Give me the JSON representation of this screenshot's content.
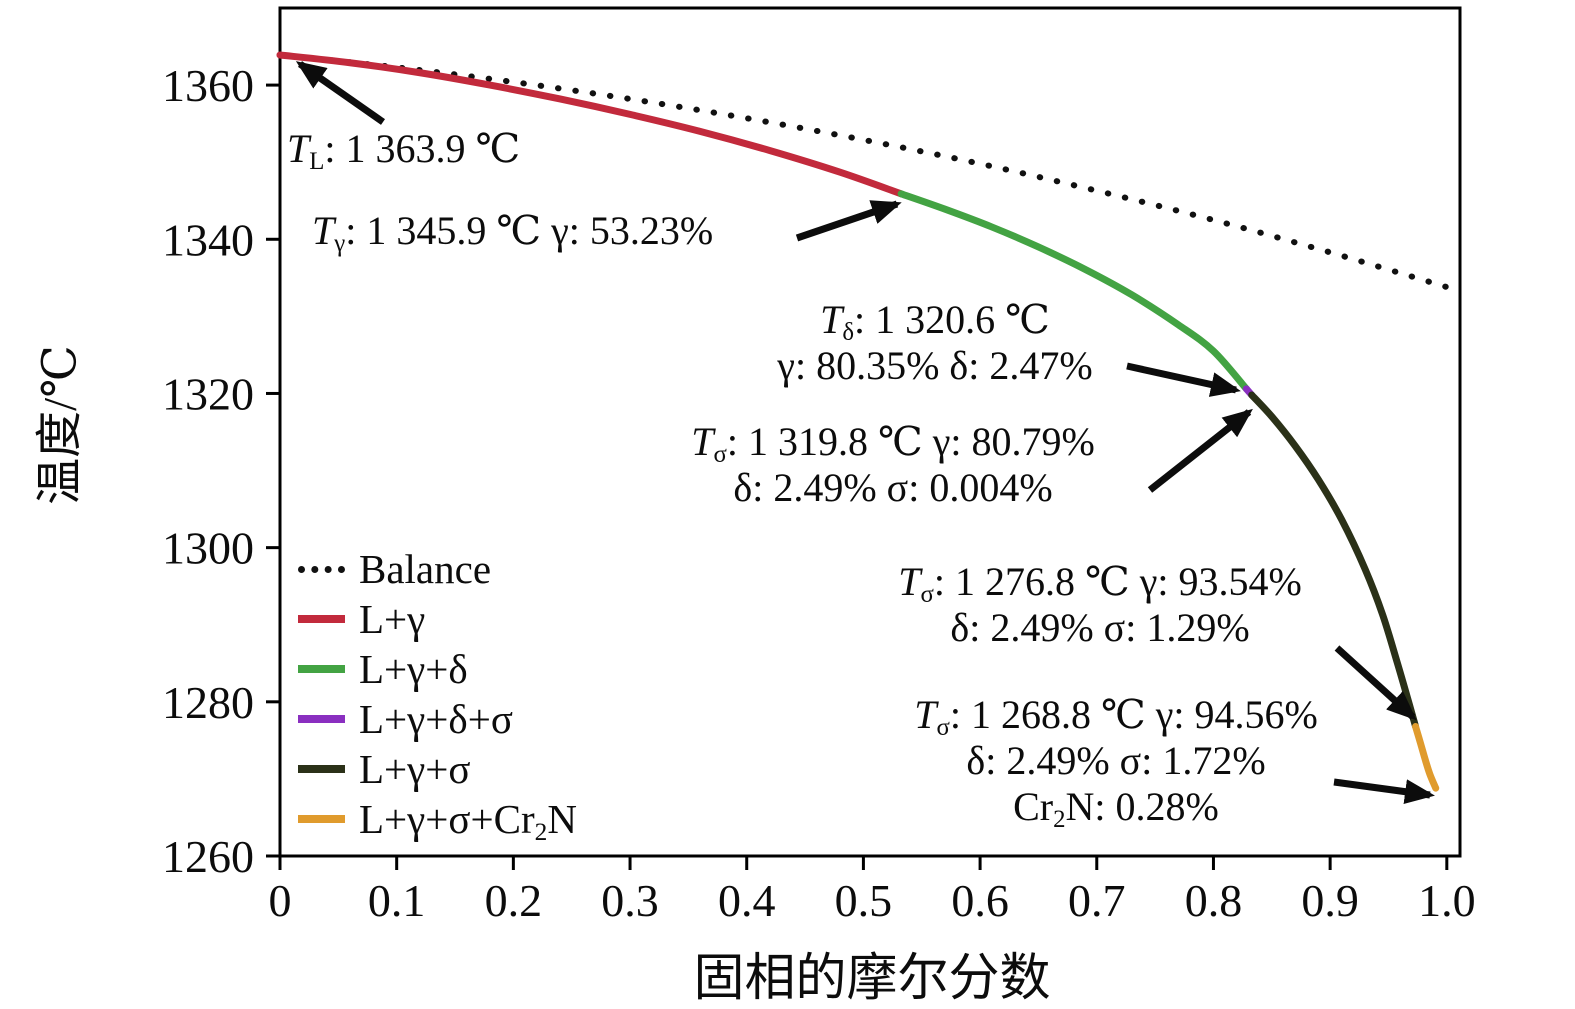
{
  "chart_data": {
    "type": "line",
    "title": "",
    "xlabel": "固相的摩尔分数",
    "ylabel": "温度/℃",
    "xlim": [
      0,
      1.0113
    ],
    "ylim": [
      1260,
      1370
    ],
    "grid": false,
    "legend_position": "lower-left",
    "axis_color": "#000000",
    "text_color": "#0c0c0c",
    "x_ticks": {
      "values": [
        0,
        0.1,
        0.2,
        0.3,
        0.4,
        0.5,
        0.6,
        0.7,
        0.8,
        0.9,
        1.0
      ],
      "labels": [
        "0",
        "0.1",
        "0.2",
        "0.3",
        "0.4",
        "0.5",
        "0.6",
        "0.7",
        "0.8",
        "0.9",
        "1.0"
      ]
    },
    "y_ticks": {
      "values": [
        1260,
        1280,
        1300,
        1320,
        1340,
        1360
      ],
      "labels": [
        "1260",
        "1280",
        "1300",
        "1320",
        "1340",
        "1360"
      ]
    },
    "series": [
      {
        "name": "Balance",
        "label": "Balance",
        "color": "#111111",
        "style": "dotted",
        "points": [
          [
            0,
            1363.9
          ],
          [
            0.1,
            1362.3
          ],
          [
            0.2,
            1360.4
          ],
          [
            0.3,
            1358.2
          ],
          [
            0.4,
            1355.7
          ],
          [
            0.5,
            1352.9
          ],
          [
            0.6,
            1349.8
          ],
          [
            0.7,
            1346.3
          ],
          [
            0.8,
            1342.5
          ],
          [
            0.9,
            1338.3
          ],
          [
            1.0,
            1333.8
          ]
        ]
      },
      {
        "name": "L+γ",
        "label": "L+γ",
        "color": "#c22a3c",
        "style": "solid",
        "points": [
          [
            0,
            1363.9
          ],
          [
            0.06,
            1362.9
          ],
          [
            0.12,
            1361.6
          ],
          [
            0.18,
            1360.0
          ],
          [
            0.24,
            1358.2
          ],
          [
            0.3,
            1356.2
          ],
          [
            0.36,
            1354.0
          ],
          [
            0.42,
            1351.5
          ],
          [
            0.48,
            1348.7
          ],
          [
            0.5323,
            1345.9
          ]
        ]
      },
      {
        "name": "L+γ+δ",
        "label": "L+γ+δ",
        "color": "#43a343",
        "style": "solid",
        "points": [
          [
            0.5323,
            1345.9
          ],
          [
            0.57,
            1343.9
          ],
          [
            0.61,
            1341.6
          ],
          [
            0.65,
            1339.0
          ],
          [
            0.69,
            1336.1
          ],
          [
            0.73,
            1332.8
          ],
          [
            0.77,
            1328.9
          ],
          [
            0.8,
            1325.5
          ],
          [
            0.8282,
            1320.6
          ]
        ]
      },
      {
        "name": "L+γ+δ+σ",
        "label": "L+γ+δ+σ",
        "color": "#8a2fc0",
        "style": "solid",
        "points": [
          [
            0.8282,
            1320.6
          ],
          [
            0.8328,
            1319.8
          ]
        ]
      },
      {
        "name": "L+γ+σ",
        "label": "L+γ+σ",
        "color": "#2b3118",
        "style": "solid",
        "points": [
          [
            0.8328,
            1319.8
          ],
          [
            0.85,
            1317.0
          ],
          [
            0.87,
            1313.2
          ],
          [
            0.89,
            1308.8
          ],
          [
            0.91,
            1303.6
          ],
          [
            0.93,
            1297.2
          ],
          [
            0.945,
            1291.3
          ],
          [
            0.9575,
            1285.1
          ],
          [
            0.9665,
            1280.4
          ],
          [
            0.9732,
            1276.8
          ]
        ]
      },
      {
        "name": "L+γ+σ+Cr₂N",
        "label": "L+γ+σ+Cr~2~N",
        "color": "#e09b2d",
        "style": "solid",
        "points": [
          [
            0.9732,
            1276.8
          ],
          [
            0.9775,
            1274.6
          ],
          [
            0.9815,
            1272.5
          ],
          [
            0.9855,
            1270.6
          ],
          [
            0.9905,
            1268.8
          ]
        ]
      }
    ],
    "annotations": [
      {
        "lines": [
          "*T*~L~: 1 363.9 ℃"
        ],
        "align": "left",
        "arrow": [
          383,
          122,
          300,
          64
        ]
      },
      {
        "lines": [
          "*T*~γ~: 1 345.9 ℃ γ: 53.23%"
        ],
        "align": "left",
        "arrow": [
          797,
          238,
          897,
          204
        ]
      },
      {
        "lines": [
          "*T*~δ~: 1 320.6 ℃",
          "γ: 80.35% δ: 2.47%"
        ],
        "align": "center",
        "arrow": [
          1127,
          366,
          1236,
          390
        ]
      },
      {
        "lines": [
          "*T*~σ~: 1 319.8 ℃ γ: 80.79%",
          "δ: 2.49% σ: 0.004%"
        ],
        "align": "center",
        "arrow": [
          1150,
          490,
          1249,
          412
        ]
      },
      {
        "lines": [
          "*T*~σ~: 1 276.8 ℃ γ: 93.54%",
          "δ: 2.49% σ: 1.29%"
        ],
        "align": "center",
        "arrow": [
          1337,
          648,
          1413,
          717
        ]
      },
      {
        "lines": [
          "*T*~σ~: 1 268.8 ℃ γ: 94.56%",
          "δ: 2.49% σ: 1.72%",
          "Cr~2~N: 0.28%"
        ],
        "align": "center",
        "arrow": [
          1334,
          782,
          1430,
          795
        ]
      }
    ]
  }
}
